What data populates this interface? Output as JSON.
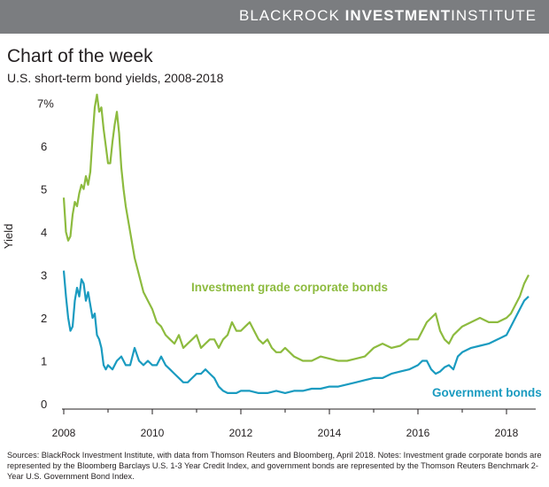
{
  "header": {
    "brand_light": "BLACKROCK",
    "brand_bold": "INVESTMENT",
    "brand_light2": "INSTITUTE"
  },
  "colors": {
    "header_bg": "#7b7d80",
    "corporate": "#8dbb3f",
    "government": "#1a9bc0",
    "text": "#231f20"
  },
  "title": "Chart of the week",
  "subtitle": "U.S. short-term bond yields, 2008-2018",
  "footnote": "Sources: BlackRock Investment Institute, with data from Thomson Reuters and Bloomberg, April 2018.    Notes: Investment grade corporate bonds are represented by the Bloomberg Barclays U.S. 1-3 Year Credit Index, and government bonds are represented by the Thomson Reuters Benchmark 2-Year U.S. Government Bond Index.",
  "chart_data": {
    "type": "line",
    "title": "U.S. short-term bond yields, 2008-2018",
    "xlabel": "",
    "ylabel": "Yield",
    "xlim": [
      2008,
      2018.6
    ],
    "ylim": [
      0,
      7.3
    ],
    "x_ticks": [
      2008,
      2010,
      2012,
      2014,
      2016,
      2018
    ],
    "x_tick_labels": [
      "2008",
      "2010",
      "2012",
      "2014",
      "2016",
      "2018"
    ],
    "y_ticks": [
      0,
      1,
      2,
      3,
      4,
      5,
      6,
      7
    ],
    "y_tick_labels": [
      "0",
      "1",
      "2",
      "3",
      "4",
      "5",
      "6",
      "7%"
    ],
    "grid": false,
    "legend": "inline labels",
    "series": [
      {
        "name": "Investment grade corporate bonds",
        "color": "#8dbb3f",
        "x": [
          2008.0,
          2008.05,
          2008.1,
          2008.15,
          2008.2,
          2008.25,
          2008.3,
          2008.35,
          2008.4,
          2008.45,
          2008.5,
          2008.55,
          2008.6,
          2008.65,
          2008.7,
          2008.75,
          2008.8,
          2008.85,
          2008.9,
          2008.95,
          2009.0,
          2009.05,
          2009.1,
          2009.15,
          2009.2,
          2009.25,
          2009.3,
          2009.35,
          2009.4,
          2009.5,
          2009.6,
          2009.7,
          2009.8,
          2009.9,
          2010.0,
          2010.1,
          2010.2,
          2010.3,
          2010.4,
          2010.5,
          2010.6,
          2010.7,
          2010.8,
          2010.9,
          2011.0,
          2011.1,
          2011.2,
          2011.3,
          2011.4,
          2011.5,
          2011.6,
          2011.7,
          2011.8,
          2011.9,
          2012.0,
          2012.1,
          2012.2,
          2012.3,
          2012.4,
          2012.5,
          2012.6,
          2012.7,
          2012.8,
          2012.9,
          2013.0,
          2013.2,
          2013.4,
          2013.6,
          2013.8,
          2014.0,
          2014.2,
          2014.4,
          2014.6,
          2014.8,
          2015.0,
          2015.2,
          2015.4,
          2015.6,
          2015.8,
          2016.0,
          2016.1,
          2016.2,
          2016.3,
          2016.4,
          2016.5,
          2016.6,
          2016.7,
          2016.8,
          2016.9,
          2017.0,
          2017.2,
          2017.4,
          2017.6,
          2017.8,
          2018.0,
          2018.1,
          2018.2,
          2018.3,
          2018.4,
          2018.5
        ],
        "values": [
          4.8,
          4.0,
          3.8,
          3.9,
          4.4,
          4.7,
          4.6,
          4.9,
          5.1,
          5.0,
          5.3,
          5.1,
          5.4,
          6.2,
          6.9,
          7.2,
          6.8,
          6.9,
          6.4,
          6.0,
          5.6,
          5.6,
          6.1,
          6.5,
          6.8,
          6.3,
          5.5,
          5.0,
          4.6,
          4.0,
          3.4,
          3.0,
          2.6,
          2.4,
          2.2,
          1.9,
          1.8,
          1.6,
          1.5,
          1.4,
          1.6,
          1.3,
          1.4,
          1.5,
          1.6,
          1.3,
          1.4,
          1.5,
          1.5,
          1.3,
          1.5,
          1.6,
          1.9,
          1.7,
          1.7,
          1.8,
          1.9,
          1.7,
          1.5,
          1.4,
          1.5,
          1.3,
          1.2,
          1.2,
          1.3,
          1.1,
          1.0,
          1.0,
          1.1,
          1.05,
          1.0,
          1.0,
          1.05,
          1.1,
          1.3,
          1.4,
          1.3,
          1.35,
          1.5,
          1.5,
          1.7,
          1.9,
          2.0,
          2.1,
          1.7,
          1.5,
          1.4,
          1.6,
          1.7,
          1.8,
          1.9,
          2.0,
          1.9,
          1.9,
          2.0,
          2.1,
          2.3,
          2.5,
          2.8,
          3.0
        ]
      },
      {
        "name": "Government bonds",
        "color": "#1a9bc0",
        "x": [
          2008.0,
          2008.05,
          2008.1,
          2008.15,
          2008.2,
          2008.25,
          2008.3,
          2008.35,
          2008.4,
          2008.45,
          2008.5,
          2008.55,
          2008.6,
          2008.65,
          2008.7,
          2008.75,
          2008.8,
          2008.85,
          2008.9,
          2008.95,
          2009.0,
          2009.1,
          2009.2,
          2009.3,
          2009.4,
          2009.5,
          2009.6,
          2009.7,
          2009.8,
          2009.9,
          2010.0,
          2010.1,
          2010.2,
          2010.3,
          2010.4,
          2010.5,
          2010.6,
          2010.7,
          2010.8,
          2010.9,
          2011.0,
          2011.1,
          2011.2,
          2011.3,
          2011.4,
          2011.5,
          2011.6,
          2011.7,
          2011.8,
          2011.9,
          2012.0,
          2012.2,
          2012.4,
          2012.6,
          2012.8,
          2013.0,
          2013.2,
          2013.4,
          2013.6,
          2013.8,
          2014.0,
          2014.2,
          2014.4,
          2014.6,
          2014.8,
          2015.0,
          2015.2,
          2015.4,
          2015.6,
          2015.8,
          2016.0,
          2016.1,
          2016.2,
          2016.3,
          2016.4,
          2016.5,
          2016.6,
          2016.7,
          2016.8,
          2016.9,
          2017.0,
          2017.2,
          2017.4,
          2017.6,
          2017.8,
          2018.0,
          2018.1,
          2018.2,
          2018.3,
          2018.4,
          2018.5
        ],
        "values": [
          3.1,
          2.5,
          2.0,
          1.7,
          1.8,
          2.4,
          2.7,
          2.5,
          2.9,
          2.8,
          2.4,
          2.6,
          2.3,
          2.0,
          2.1,
          1.6,
          1.5,
          1.3,
          0.9,
          0.8,
          0.9,
          0.8,
          1.0,
          1.1,
          0.9,
          0.9,
          1.3,
          1.0,
          0.9,
          1.0,
          0.9,
          0.9,
          1.1,
          0.9,
          0.8,
          0.7,
          0.6,
          0.5,
          0.5,
          0.6,
          0.7,
          0.7,
          0.8,
          0.7,
          0.6,
          0.4,
          0.3,
          0.25,
          0.25,
          0.25,
          0.3,
          0.3,
          0.25,
          0.25,
          0.3,
          0.25,
          0.3,
          0.3,
          0.35,
          0.35,
          0.4,
          0.4,
          0.45,
          0.5,
          0.55,
          0.6,
          0.6,
          0.7,
          0.75,
          0.8,
          0.9,
          1.0,
          1.0,
          0.8,
          0.7,
          0.75,
          0.85,
          0.9,
          0.8,
          1.1,
          1.2,
          1.3,
          1.35,
          1.4,
          1.5,
          1.6,
          1.8,
          2.0,
          2.2,
          2.4,
          2.5
        ]
      }
    ]
  }
}
